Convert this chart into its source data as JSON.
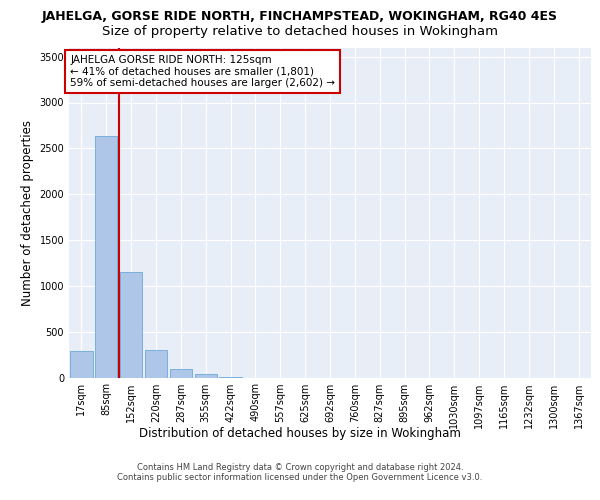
{
  "title1": "JAHELGA, GORSE RIDE NORTH, FINCHAMPSTEAD, WOKINGHAM, RG40 4ES",
  "title2": "Size of property relative to detached houses in Wokingham",
  "xlabel": "Distribution of detached houses by size in Wokingham",
  "ylabel": "Number of detached properties",
  "bar_labels": [
    "17sqm",
    "85sqm",
    "152sqm",
    "220sqm",
    "287sqm",
    "355sqm",
    "422sqm",
    "490sqm",
    "557sqm",
    "625sqm",
    "692sqm",
    "760sqm",
    "827sqm",
    "895sqm",
    "962sqm",
    "1030sqm",
    "1097sqm",
    "1165sqm",
    "1232sqm",
    "1300sqm",
    "1367sqm"
  ],
  "bar_values": [
    290,
    2640,
    1150,
    295,
    95,
    35,
    10,
    0,
    0,
    0,
    0,
    0,
    0,
    0,
    0,
    0,
    0,
    0,
    0,
    0,
    0
  ],
  "bar_color": "#aec6e8",
  "bar_edgecolor": "#5a9fd4",
  "bar_linewidth": 0.5,
  "vline_x": 1.5,
  "vline_color": "#cc0000",
  "ylim": [
    0,
    3600
  ],
  "yticks": [
    0,
    500,
    1000,
    1500,
    2000,
    2500,
    3000,
    3500
  ],
  "annotation_text": "JAHELGA GORSE RIDE NORTH: 125sqm\n← 41% of detached houses are smaller (1,801)\n59% of semi-detached houses are larger (2,602) →",
  "footer": "Contains HM Land Registry data © Crown copyright and database right 2024.\nContains public sector information licensed under the Open Government Licence v3.0.",
  "bg_color": "#e8eef8",
  "grid_color": "#ffffff",
  "title1_fontsize": 9,
  "title2_fontsize": 9.5,
  "xlabel_fontsize": 8.5,
  "ylabel_fontsize": 8.5,
  "tick_fontsize": 7,
  "annotation_fontsize": 7.5,
  "footer_fontsize": 6
}
